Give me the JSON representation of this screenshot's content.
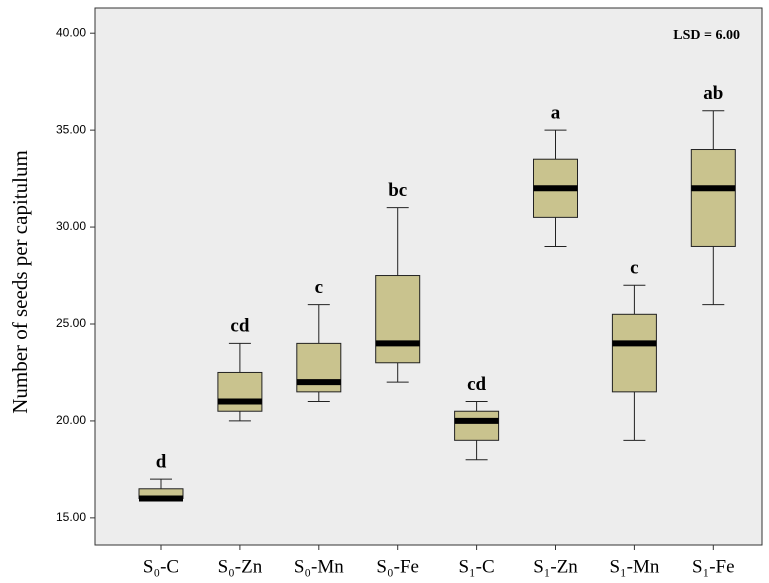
{
  "chart_data": {
    "type": "box",
    "y_label": "Number of seeds per capitulum",
    "annotation": "LSD = 6.00",
    "categories": [
      "S₀-C",
      "S₀-Zn",
      "S₀-Mn",
      "S₀-Fe",
      "S₁-C",
      "S₁-Zn",
      "S₁-Mn",
      "S₁-Fe"
    ],
    "min": [
      16,
      20,
      21,
      22,
      18,
      29,
      19,
      26
    ],
    "q1": [
      16,
      20.5,
      21.5,
      23,
      19,
      30.5,
      21.5,
      29
    ],
    "median": [
      16,
      21,
      22,
      24,
      20,
      32,
      24,
      32
    ],
    "q3": [
      16.5,
      22.5,
      24,
      27.5,
      20.5,
      33.5,
      25.5,
      34
    ],
    "max": [
      17,
      24,
      26,
      31,
      21,
      35,
      27,
      36
    ],
    "letters": [
      "d",
      "cd",
      "c",
      "bc",
      "cd",
      "a",
      "c",
      "ab"
    ],
    "color": "#c9c38e",
    "ylim": [
      13.6,
      41.3
    ],
    "yticks": [
      {
        "value": 15,
        "label": "15.00"
      },
      {
        "value": 20,
        "label": "20.00"
      },
      {
        "value": 25,
        "label": "25.00"
      },
      {
        "value": 30,
        "label": "30.00"
      },
      {
        "value": 35,
        "label": "35.00"
      },
      {
        "value": 40,
        "label": "40.00"
      }
    ]
  }
}
